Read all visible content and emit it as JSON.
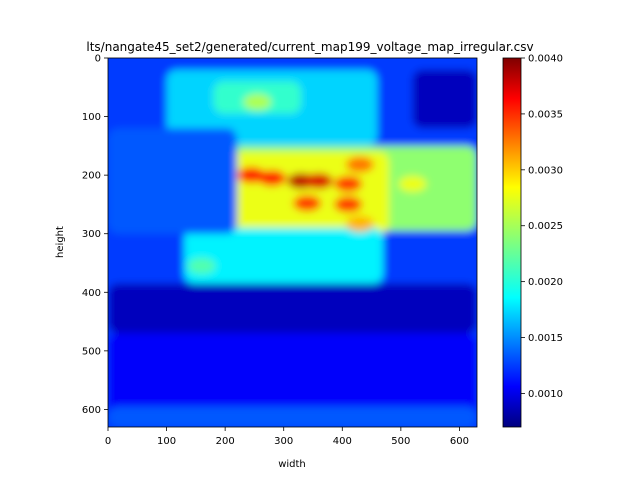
{
  "chart_data": {
    "type": "heatmap",
    "title": "lts/nangate45_set2/generated/current_map199_voltage_map_irregular.csv",
    "xlabel": "width",
    "ylabel": "height",
    "xlim": [
      0,
      630
    ],
    "ylim": [
      630,
      0
    ],
    "x_ticks": [
      "0",
      "100",
      "200",
      "300",
      "400",
      "500",
      "600"
    ],
    "y_ticks": [
      "0",
      "100",
      "200",
      "300",
      "400",
      "500",
      "600"
    ],
    "colormap": "jet",
    "colorbar": {
      "vmin": 0.0007,
      "vmax": 0.004,
      "ticks": [
        "0.0010",
        "0.0015",
        "0.0020",
        "0.0025",
        "0.0030",
        "0.0035",
        "0.0040"
      ]
    },
    "hotspots": [
      {
        "x": 330,
        "y": 210,
        "value": 0.0038
      },
      {
        "x": 360,
        "y": 210,
        "value": 0.0037
      },
      {
        "x": 245,
        "y": 200,
        "value": 0.0035
      },
      {
        "x": 280,
        "y": 205,
        "value": 0.0035
      },
      {
        "x": 410,
        "y": 215,
        "value": 0.0034
      },
      {
        "x": 340,
        "y": 248,
        "value": 0.0034
      },
      {
        "x": 410,
        "y": 250,
        "value": 0.0034
      },
      {
        "x": 430,
        "y": 182,
        "value": 0.0032
      },
      {
        "x": 430,
        "y": 283,
        "value": 0.003
      },
      {
        "x": 520,
        "y": 215,
        "value": 0.0027
      },
      {
        "x": 255,
        "y": 75,
        "value": 0.0025
      },
      {
        "x": 160,
        "y": 355,
        "value": 0.0022
      }
    ],
    "regions": [
      {
        "x0": 170,
        "x1": 630,
        "y0": 150,
        "y1": 295,
        "value": 0.0024
      },
      {
        "x0": 200,
        "x1": 480,
        "y0": 160,
        "y1": 300,
        "value": 0.0027
      },
      {
        "x0": 130,
        "x1": 470,
        "y0": 290,
        "y1": 385,
        "value": 0.0019
      },
      {
        "x0": 100,
        "x1": 460,
        "y0": 20,
        "y1": 150,
        "value": 0.0018
      },
      {
        "x0": 180,
        "x1": 330,
        "y0": 40,
        "y1": 95,
        "value": 0.0021
      },
      {
        "x0": 0,
        "x1": 220,
        "y0": 120,
        "y1": 300,
        "value": 0.0014
      },
      {
        "x0": 520,
        "x1": 630,
        "y0": 20,
        "y1": 120,
        "value": 0.0009
      },
      {
        "x0": 0,
        "x1": 630,
        "y0": 385,
        "y1": 470,
        "value": 0.0009
      },
      {
        "x0": 0,
        "x1": 630,
        "y0": 470,
        "y1": 630,
        "value": 0.0011
      },
      {
        "x0": 0,
        "x1": 630,
        "y0": 595,
        "y1": 630,
        "value": 0.0014
      }
    ],
    "background_value": 0.0013
  }
}
